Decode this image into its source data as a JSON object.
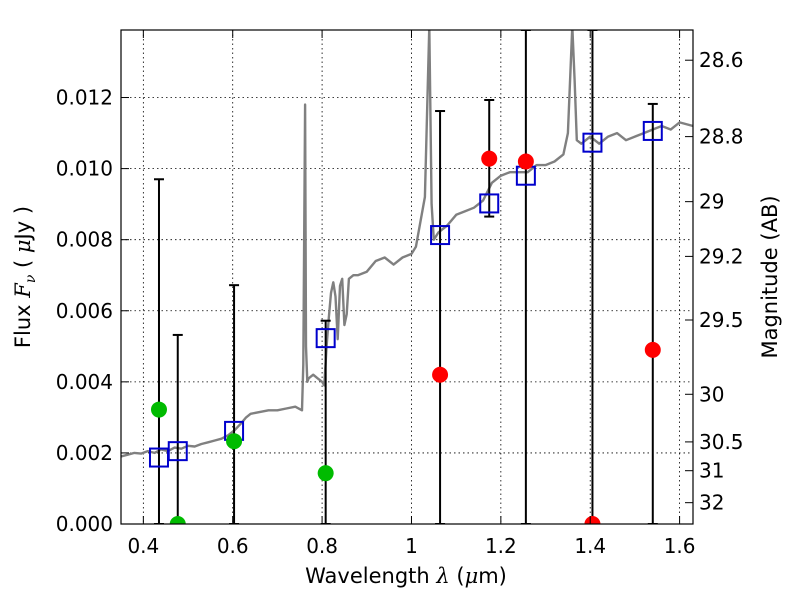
{
  "chart_data": {
    "type": "scatter",
    "xlabel_parts": [
      "Wavelength  ",
      "λ",
      " (",
      "μ",
      "m)"
    ],
    "ylabel_parts": [
      "Flux  ",
      "F",
      "ν",
      "  ( ",
      "μ",
      "Jy )"
    ],
    "y2label": "Magnitude (AB)",
    "xlim": [
      0.35,
      1.63
    ],
    "ylim": [
      0.0,
      0.0139
    ],
    "grid": true,
    "x_ticks": [
      0.4,
      0.6,
      0.8,
      1.0,
      1.2,
      1.4,
      1.6
    ],
    "x_tick_labels": [
      "0.4",
      "0.6",
      "0.8",
      "1",
      "1.2",
      "1.4",
      "1.6"
    ],
    "y_ticks": [
      0.0,
      0.002,
      0.004,
      0.006,
      0.008,
      0.01,
      0.012
    ],
    "y_tick_labels": [
      "0.000",
      "0.002",
      "0.004",
      "0.006",
      "0.008",
      "0.010",
      "0.012"
    ],
    "mag_ticks": [
      {
        "label": "28.6",
        "flux": 0.01305
      },
      {
        "label": "28.8",
        "flux": 0.0109
      },
      {
        "label": "29",
        "flux": 0.00907
      },
      {
        "label": "29.2",
        "flux": 0.00753
      },
      {
        "label": "29.5",
        "flux": 0.00574
      },
      {
        "label": "30",
        "flux": 0.00365
      },
      {
        "label": "30.5",
        "flux": 0.00231
      },
      {
        "label": "31",
        "flux": 0.0015
      },
      {
        "label": "32",
        "flux": 0.0006
      }
    ],
    "colors": {
      "sed": "#808080",
      "model": "#0000cc",
      "detected": "#ff0000",
      "undetected": "#00bb00",
      "errorbar": "#000000"
    },
    "series": [
      {
        "name": "model_sed",
        "style": "line",
        "x": [
          0.35,
          0.365,
          0.38,
          0.395,
          0.41,
          0.425,
          0.44,
          0.455,
          0.47,
          0.485,
          0.5,
          0.515,
          0.53,
          0.545,
          0.56,
          0.575,
          0.59,
          0.605,
          0.62,
          0.63,
          0.64,
          0.66,
          0.68,
          0.7,
          0.72,
          0.74,
          0.755,
          0.758,
          0.762,
          0.764,
          0.767,
          0.77,
          0.78,
          0.79,
          0.8,
          0.805,
          0.81,
          0.815,
          0.82,
          0.825,
          0.83,
          0.835,
          0.84,
          0.845,
          0.85,
          0.855,
          0.86,
          0.87,
          0.88,
          0.9,
          0.92,
          0.94,
          0.96,
          0.98,
          1.0,
          1.01,
          1.02,
          1.03,
          1.04,
          1.045,
          1.05,
          1.06,
          1.08,
          1.1,
          1.12,
          1.14,
          1.16,
          1.18,
          1.2,
          1.22,
          1.24,
          1.26,
          1.28,
          1.3,
          1.32,
          1.34,
          1.35,
          1.36,
          1.365,
          1.37,
          1.38,
          1.39,
          1.4,
          1.42,
          1.44,
          1.46,
          1.48,
          1.5,
          1.52,
          1.54,
          1.56,
          1.58,
          1.6,
          1.63
        ],
        "y": [
          0.0019,
          0.00195,
          0.002,
          0.00198,
          0.00205,
          0.002,
          0.0021,
          0.00205,
          0.00215,
          0.00212,
          0.0022,
          0.00218,
          0.00225,
          0.0023,
          0.00235,
          0.0024,
          0.0025,
          0.00265,
          0.00285,
          0.003,
          0.0031,
          0.00315,
          0.0032,
          0.0032,
          0.00325,
          0.0033,
          0.0032,
          0.0045,
          0.0118,
          0.005,
          0.004,
          0.0041,
          0.0042,
          0.0041,
          0.004,
          0.0039,
          0.005,
          0.0058,
          0.0065,
          0.0068,
          0.0064,
          0.0052,
          0.0067,
          0.0069,
          0.0056,
          0.0059,
          0.0069,
          0.007,
          0.007,
          0.0071,
          0.0074,
          0.0075,
          0.0073,
          0.0075,
          0.0076,
          0.0078,
          0.0085,
          0.0092,
          0.014,
          0.009,
          0.008,
          0.0082,
          0.0084,
          0.0087,
          0.0088,
          0.0089,
          0.0091,
          0.0096,
          0.0098,
          0.0099,
          0.0099,
          0.0099,
          0.0101,
          0.0101,
          0.0102,
          0.0104,
          0.011,
          0.014,
          0.0125,
          0.0108,
          0.0107,
          0.0108,
          0.0109,
          0.0107,
          0.0109,
          0.011,
          0.0108,
          0.0109,
          0.011,
          0.0111,
          0.0112,
          0.0111,
          0.0113,
          0.0112
        ]
      },
      {
        "name": "model_photometry",
        "style": "open-square",
        "x": [
          0.435,
          0.477,
          0.603,
          0.808,
          1.064,
          1.174,
          1.256,
          1.405,
          1.54
        ],
        "y": [
          0.00187,
          0.00205,
          0.00262,
          0.00523,
          0.00813,
          0.00902,
          0.0098,
          0.01073,
          0.01106
        ]
      },
      {
        "name": "observed_detected",
        "style": "filled-circle",
        "x": [
          1.064,
          1.174,
          1.256,
          1.405,
          1.54
        ],
        "y": [
          0.0042,
          0.01028,
          0.0102,
          0.0,
          0.0049
        ]
      },
      {
        "name": "observed_undetected",
        "style": "filled-circle",
        "x": [
          0.435,
          0.477,
          0.603,
          0.808
        ],
        "y": [
          0.00322,
          0.0,
          0.00233,
          0.00143
        ]
      },
      {
        "name": "error_bars",
        "style": "errorbar",
        "x": [
          0.435,
          0.477,
          0.603,
          0.808,
          1.064,
          1.174,
          1.256,
          1.405,
          1.54
        ],
        "low": [
          0.0,
          0.0,
          0.0,
          0.0,
          0.0,
          0.00865,
          0.0,
          0.0,
          0.0
        ],
        "high": [
          0.0097,
          0.00532,
          0.00672,
          0.00572,
          0.01162,
          0.01193,
          0.0139,
          0.0139,
          0.01182
        ]
      }
    ]
  }
}
